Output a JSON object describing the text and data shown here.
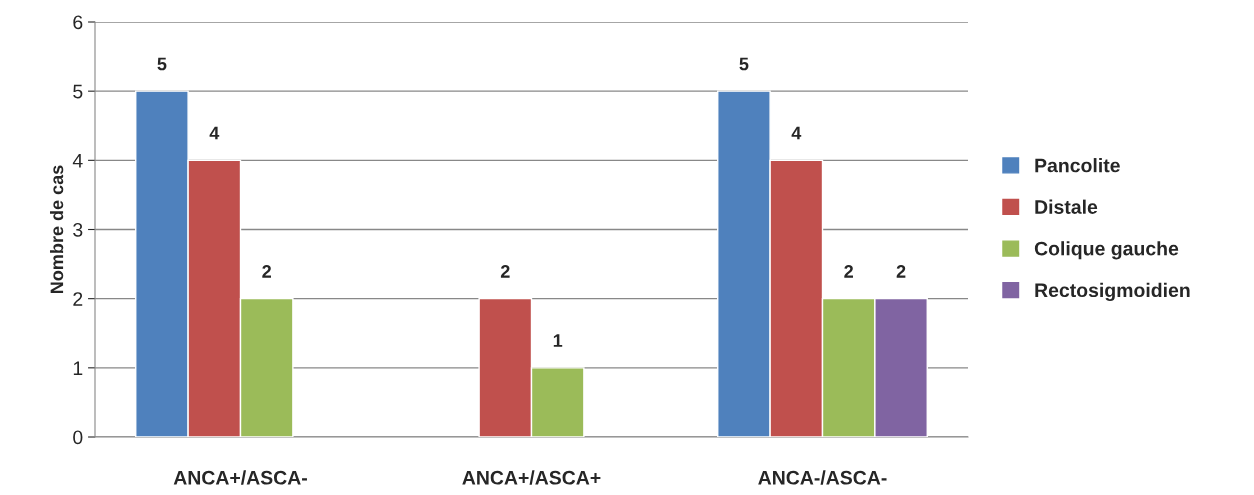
{
  "chart_data": {
    "type": "bar",
    "ylabel": "Nombre de cas",
    "categories": [
      "ANCA+/ASCA-",
      "ANCA+/ASCA+",
      "ANCA-/ASCA-"
    ],
    "series": [
      {
        "name": "Pancolite",
        "color": "#4f81bd",
        "values": [
          5,
          null,
          5
        ]
      },
      {
        "name": "Distale",
        "color": "#c0504d",
        "values": [
          4,
          2,
          4
        ]
      },
      {
        "name": "Colique gauche",
        "color": "#9bbb59",
        "values": [
          2,
          1,
          2
        ]
      },
      {
        "name": "Rectosigmoidien",
        "color": "#8064a2",
        "values": [
          null,
          null,
          2
        ]
      }
    ],
    "ylim": [
      0,
      6
    ],
    "yticks": [
      0,
      1,
      2,
      3,
      4,
      5,
      6
    ],
    "grid": "y",
    "legend": "right",
    "data_labels": true
  }
}
